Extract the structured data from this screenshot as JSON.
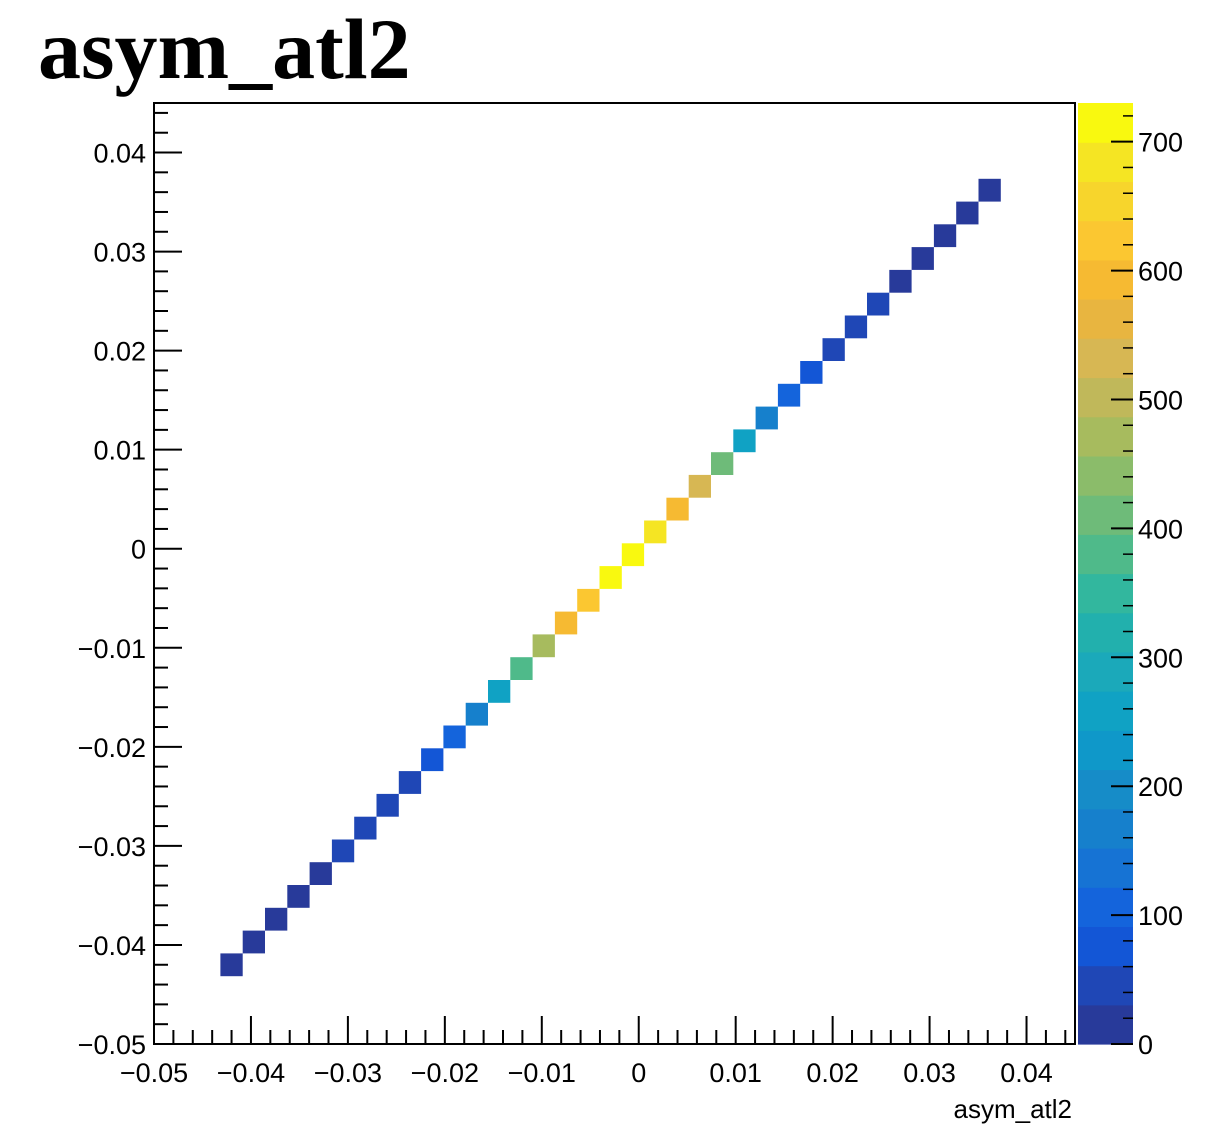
{
  "chart_data": {
    "type": "heatmap",
    "title": "asym_atl2",
    "xlabel": "asym_atl2",
    "ylabel": "",
    "xlim": [
      -0.05,
      0.045
    ],
    "ylim": [
      -0.05,
      0.045
    ],
    "bin_width": 0.0023,
    "x_ticks": [
      "−0.05",
      "−0.04",
      "−0.03",
      "−0.02",
      "−0.01",
      "0",
      "0.01",
      "0.02",
      "0.03",
      "0.04"
    ],
    "x_tick_values": [
      -0.05,
      -0.04,
      -0.03,
      -0.02,
      -0.01,
      0,
      0.01,
      0.02,
      0.03,
      0.04
    ],
    "y_ticks": [
      "−0.05",
      "−0.04",
      "−0.03",
      "−0.02",
      "−0.01",
      "0",
      "0.01",
      "0.02",
      "0.03",
      "0.04"
    ],
    "y_tick_values": [
      -0.05,
      -0.04,
      -0.03,
      -0.02,
      -0.01,
      0,
      0.01,
      0.02,
      0.03,
      0.04
    ],
    "colorbar": {
      "min": 0,
      "max": 730,
      "ticks": [
        "0",
        "100",
        "200",
        "300",
        "400",
        "500",
        "600",
        "700"
      ],
      "tick_values": [
        0,
        100,
        200,
        300,
        400,
        500,
        600,
        700
      ],
      "colors": [
        "#283a9a",
        "#1f47b6",
        "#1356d6",
        "#1464dc",
        "#1673d4",
        "#1680cc",
        "#168cc8",
        "#0f98c9",
        "#10a2c4",
        "#1ba9ba",
        "#22b0ad",
        "#32b79e",
        "#4fba8a",
        "#6ebb79",
        "#8bbc6a",
        "#a7bb5e",
        "#c0b85a",
        "#d7b753",
        "#e8b540",
        "#f6ba32",
        "#fbc731",
        "#f7d52c",
        "#f5e523",
        "#f9f90f"
      ]
    },
    "cells": [
      {
        "x": -0.042,
        "y": -0.042,
        "value": 15
      },
      {
        "x": -0.0397,
        "y": -0.0397,
        "value": 20
      },
      {
        "x": -0.0374,
        "y": -0.0374,
        "value": 22
      },
      {
        "x": -0.0351,
        "y": -0.0351,
        "value": 25
      },
      {
        "x": -0.0328,
        "y": -0.0328,
        "value": 28
      },
      {
        "x": -0.0305,
        "y": -0.0305,
        "value": 32
      },
      {
        "x": -0.0282,
        "y": -0.0282,
        "value": 36
      },
      {
        "x": -0.0259,
        "y": -0.0259,
        "value": 42
      },
      {
        "x": -0.0236,
        "y": -0.0236,
        "value": 55
      },
      {
        "x": -0.0213,
        "y": -0.0213,
        "value": 85
      },
      {
        "x": -0.019,
        "y": -0.019,
        "value": 110
      },
      {
        "x": -0.0167,
        "y": -0.0167,
        "value": 175
      },
      {
        "x": -0.0144,
        "y": -0.0144,
        "value": 250
      },
      {
        "x": -0.0121,
        "y": -0.0121,
        "value": 370
      },
      {
        "x": -0.0098,
        "y": -0.0098,
        "value": 470
      },
      {
        "x": -0.0075,
        "y": -0.0075,
        "value": 585
      },
      {
        "x": -0.0052,
        "y": -0.0052,
        "value": 635
      },
      {
        "x": -0.0029,
        "y": -0.0029,
        "value": 700
      },
      {
        "x": -0.0006,
        "y": -0.0006,
        "value": 725
      },
      {
        "x": 0.0017,
        "y": 0.0017,
        "value": 680
      },
      {
        "x": 0.004,
        "y": 0.004,
        "value": 600
      },
      {
        "x": 0.0063,
        "y": 0.0063,
        "value": 535
      },
      {
        "x": 0.0086,
        "y": 0.0086,
        "value": 420
      },
      {
        "x": 0.0109,
        "y": 0.0109,
        "value": 260
      },
      {
        "x": 0.0132,
        "y": 0.0132,
        "value": 165
      },
      {
        "x": 0.0155,
        "y": 0.0155,
        "value": 120
      },
      {
        "x": 0.0178,
        "y": 0.0178,
        "value": 70
      },
      {
        "x": 0.0201,
        "y": 0.0201,
        "value": 50
      },
      {
        "x": 0.0224,
        "y": 0.0224,
        "value": 40
      },
      {
        "x": 0.0247,
        "y": 0.0247,
        "value": 32
      },
      {
        "x": 0.027,
        "y": 0.027,
        "value": 28
      },
      {
        "x": 0.0293,
        "y": 0.0293,
        "value": 24
      },
      {
        "x": 0.0316,
        "y": 0.0316,
        "value": 20
      },
      {
        "x": 0.0339,
        "y": 0.0339,
        "value": 18
      },
      {
        "x": 0.0362,
        "y": 0.0362,
        "value": 15
      }
    ]
  }
}
